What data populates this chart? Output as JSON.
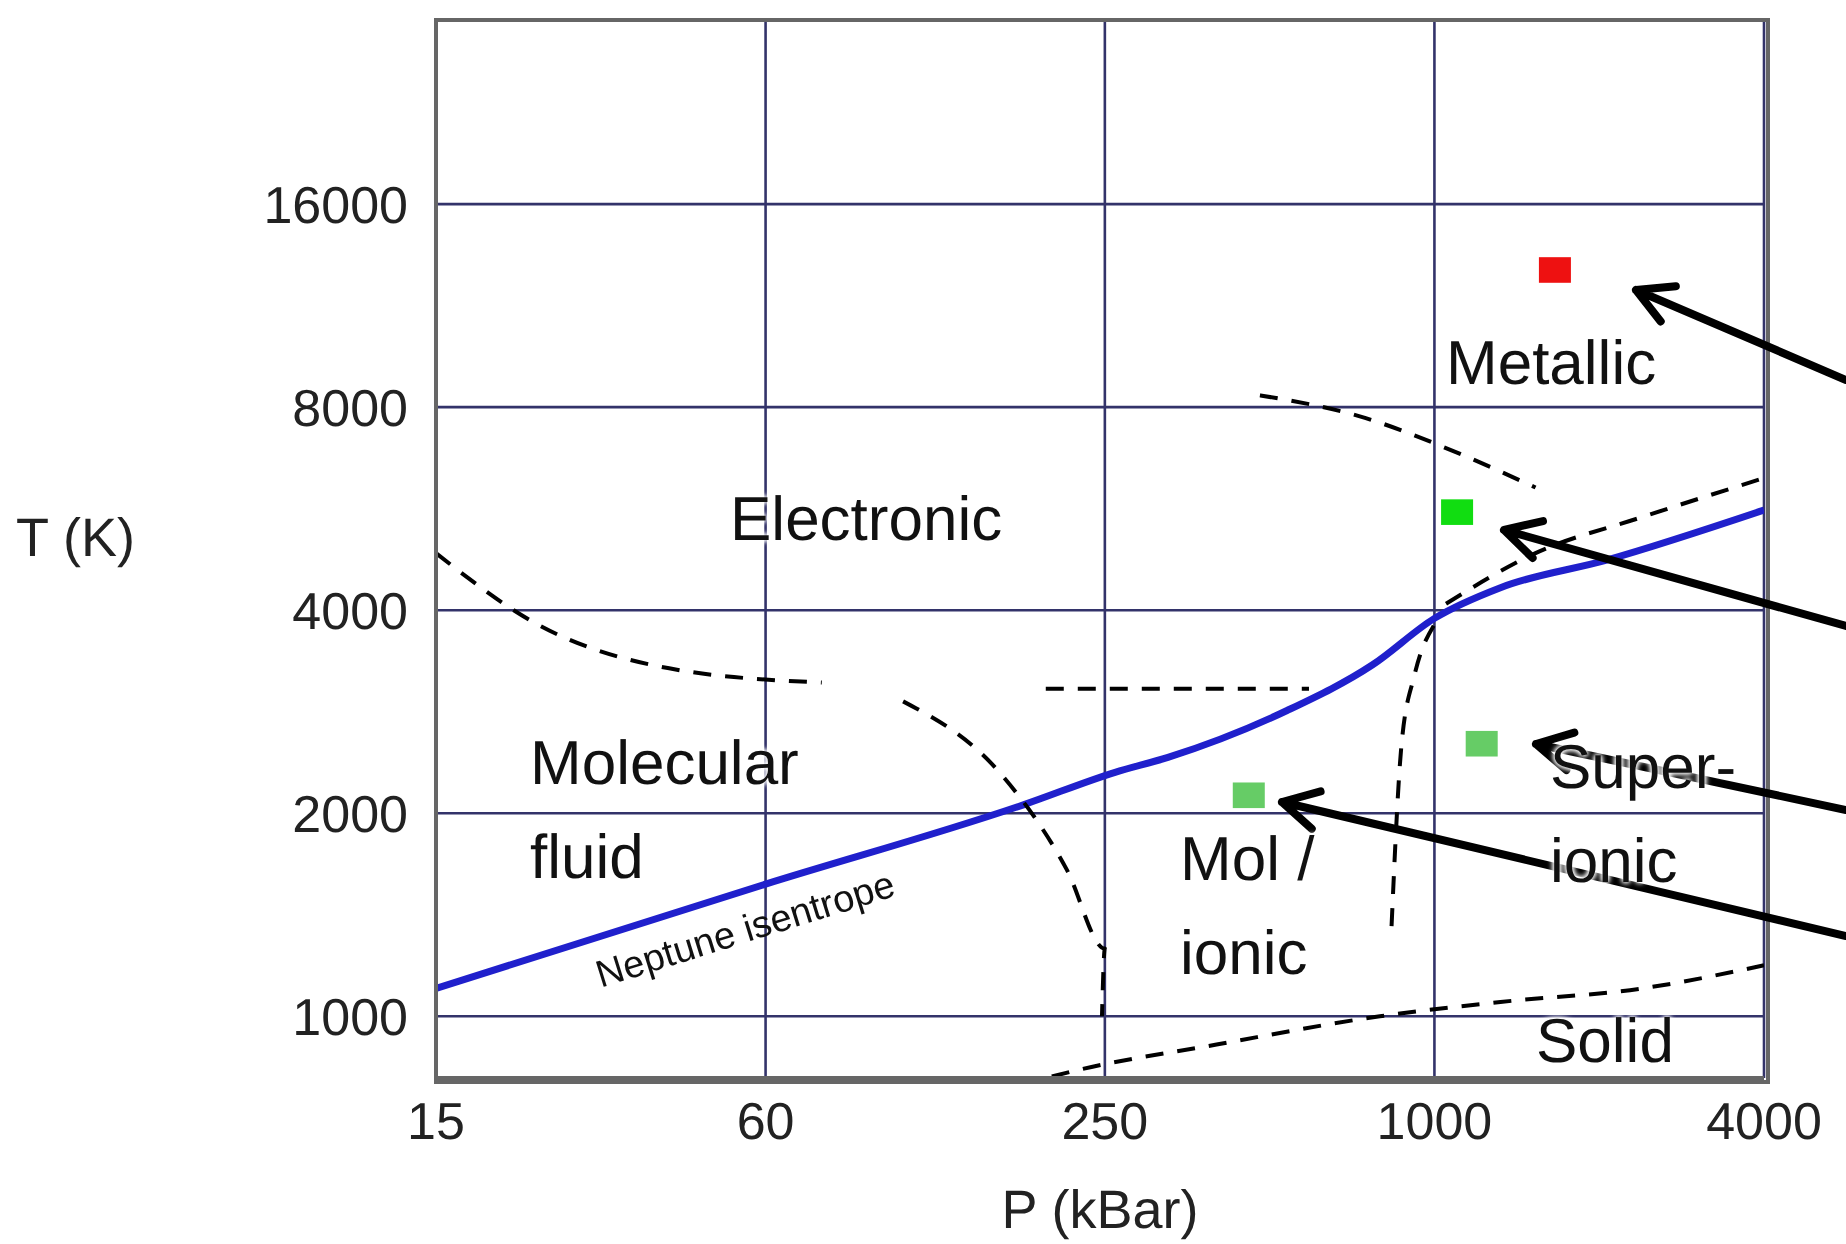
{
  "chart_data": {
    "type": "line",
    "xlabel": "P (kBar)",
    "ylabel": "T (K)",
    "log": "xy",
    "xlim": [
      15,
      4000
    ],
    "ylim": [
      810,
      30000
    ],
    "xticks": [
      15,
      60,
      250,
      1000,
      4000
    ],
    "yticks": [
      1000,
      2000,
      4000,
      8000,
      16000
    ],
    "grid": true,
    "legend": false,
    "marker": "none",
    "series": [
      {
        "name": "Neptune isentrope",
        "color": "#2020cc",
        "line_style": "solid",
        "x": [
          15,
          60,
          178,
          261,
          326,
          538,
          771,
          1000,
          1320,
          2070,
          4000
        ],
        "values": [
          1100,
          1570,
          2060,
          2300,
          2420,
          2840,
          3320,
          3890,
          4320,
          4750,
          5630
        ]
      },
      {
        "color": "#000000",
        "line_style": "dashed",
        "x": [
          15,
          23,
          40,
          76
        ],
        "values": [
          4860,
          3810,
          3280,
          3125
        ]
      },
      {
        "color": "#000000",
        "line_style": "dashed",
        "x": [
          195,
          590
        ],
        "values": [
          3060,
          3060
        ]
      },
      {
        "color": "#000000",
        "line_style": "dashed",
        "x": [
          107,
          162,
          213,
          250,
          247
        ],
        "values": [
          2930,
          2280,
          1650,
          1260,
          1000
        ]
      },
      {
        "color": "#000000",
        "line_style": "dashed",
        "x": [
          835,
          870,
          920,
          1000
        ],
        "values": [
          1360,
          2510,
          3210,
          3810
        ]
      },
      {
        "color": "#000000",
        "line_style": "dashed",
        "x": [
          1050,
          1530,
          2400,
          4000
        ],
        "values": [
          4090,
          4860,
          5500,
          6280
        ]
      },
      {
        "color": "#000000",
        "line_style": "dashed",
        "x": [
          480,
          728,
          1100,
          1530
        ],
        "values": [
          8330,
          7760,
          6850,
          6080
        ]
      },
      {
        "color": "#000000",
        "line_style": "dashed",
        "x": [
          200,
          220,
          400,
          795,
          1320,
          2400,
          4000
        ],
        "values": [
          814,
          830,
          908,
          1000,
          1050,
          1100,
          1190
        ]
      },
      {
        "type": "scatter",
        "marker": "square",
        "colors": [
          "#ee1111",
          "#11dd11",
          "#66cc66",
          "#66cc66"
        ],
        "x": [
          1660,
          1100,
          1220,
          458
        ],
        "values": [
          12800,
          5600,
          2540,
          2130
        ]
      }
    ],
    "annotations": [
      "Electronic",
      "Molecular\nfluid",
      "Mol /\nionic",
      "Super-\nionic",
      "Solid",
      "Metallic"
    ]
  }
}
